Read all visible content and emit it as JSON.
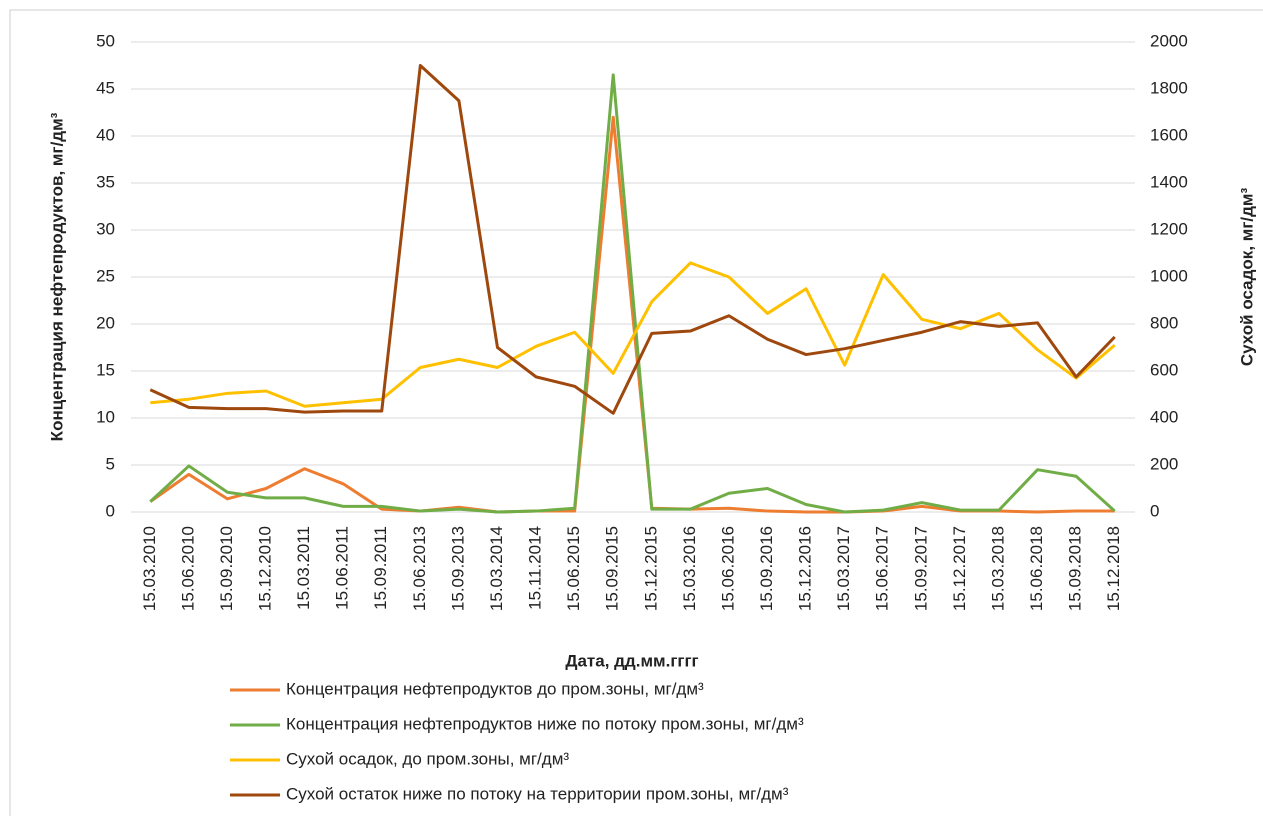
{
  "chart_data": {
    "type": "line",
    "x_label": "Дата, дд.мм.гггг",
    "y_label": "Концентрация нефтепродуктов, мг/дм³",
    "y2_label": "Сухой осадок, мг/дм³",
    "categories": [
      "15.03.2010",
      "15.06.2010",
      "15.09.2010",
      "15.12.2010",
      "15.03.2011",
      "15.06.2011",
      "15.09.2011",
      "15.06.2013",
      "15.09.2013",
      "15.03.2014",
      "15.11.2014",
      "15.06.2015",
      "15.09.2015",
      "15.12.2015",
      "15.03.2016",
      "15.06.2016",
      "15.09.2016",
      "15.12.2016",
      "15.03.2017",
      "15.06.2017",
      "15.09.2017",
      "15.12.2017",
      "15.03.2018",
      "15.06.2018",
      "15.09.2018",
      "15.12.2018"
    ],
    "series": [
      {
        "name": "Концентрация нефтепродуктов до пром.зоны, мг/дм³",
        "color": "#ed7d31",
        "values": [
          1.1,
          4.0,
          1.4,
          2.5,
          4.6,
          3.0,
          0.3,
          0.1,
          0.5,
          0,
          0.1,
          0.1,
          42,
          0.4,
          0.3,
          0.4,
          0.1,
          0,
          0,
          0.1,
          0.6,
          0.1,
          0.1,
          0,
          0.1,
          0.1
        ]
      },
      {
        "name": "Концентрация нефтепродуктов ниже по потоку пром.зоны, мг/дм³",
        "color": "#70ad47",
        "values": [
          1.1,
          4.9,
          2.1,
          1.5,
          1.5,
          0.6,
          0.6,
          0.1,
          0.3,
          0,
          0.1,
          0.4,
          46.5,
          0.3,
          0.3,
          2.0,
          2.5,
          0.8,
          0,
          0.2,
          1.0,
          0.2,
          0.2,
          4.5,
          3.8,
          0.1
        ]
      },
      {
        "name": "Сухой осадок, до пром.зоны, мг/дм³",
        "color": "#ffc000",
        "axis": "y2",
        "values": [
          465,
          480,
          505,
          515,
          450,
          465,
          480,
          615,
          650,
          615,
          705,
          765,
          590,
          895,
          1060,
          1000,
          845,
          950,
          625,
          1010,
          820,
          780,
          845,
          690,
          570,
          710
        ]
      },
      {
        "name": "Сухой остаток ниже по потоку на территории пром.зоны, мг/дм³",
        "color": "#9e480e",
        "axis": "y2",
        "values": [
          520,
          445,
          440,
          440,
          425,
          430,
          430,
          1900,
          1750,
          700,
          575,
          535,
          420,
          760,
          770,
          835,
          735,
          670,
          695,
          730,
          765,
          810,
          790,
          805,
          575,
          745
        ]
      }
    ],
    "ylim": [
      0,
      50
    ],
    "yticks": [
      0,
      5,
      10,
      15,
      20,
      25,
      30,
      35,
      40,
      45,
      50
    ],
    "y2lim": [
      0,
      2000
    ],
    "y2ticks": [
      0,
      200,
      400,
      600,
      800,
      1000,
      1200,
      1400,
      1600,
      1800,
      2000
    ],
    "grid": true,
    "legend": "bottom"
  }
}
